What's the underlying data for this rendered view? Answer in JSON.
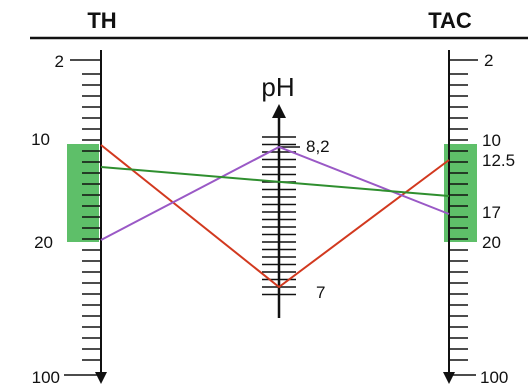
{
  "headers": {
    "left": "TH",
    "right": "TAC",
    "center": "pH"
  },
  "scales": {
    "th": {
      "labels": [
        "2",
        "10",
        "20",
        "100"
      ],
      "highlight_range": [
        "10",
        "20"
      ]
    },
    "ph": {
      "labels": [
        "8,2",
        "7"
      ]
    },
    "tac": {
      "labels": [
        "2",
        "10",
        "12.5",
        "17",
        "20",
        "100"
      ],
      "highlight_range": [
        "10",
        "20"
      ]
    }
  },
  "colors": {
    "highlight": "#5ebf69",
    "line_red": "#d2391f",
    "line_purple": "#9a59c6",
    "line_green": "#2f8f2f",
    "ink": "#111111"
  },
  "lines": [
    {
      "color": "red",
      "from": "TH 10",
      "via": "pH 7",
      "to": "TAC 10"
    },
    {
      "color": "red",
      "from": "TH 20",
      "via": "pH 8,2",
      "to": "TAC 17"
    },
    {
      "color": "green",
      "from": "TH 12.5",
      "to": "TAC 15"
    }
  ]
}
